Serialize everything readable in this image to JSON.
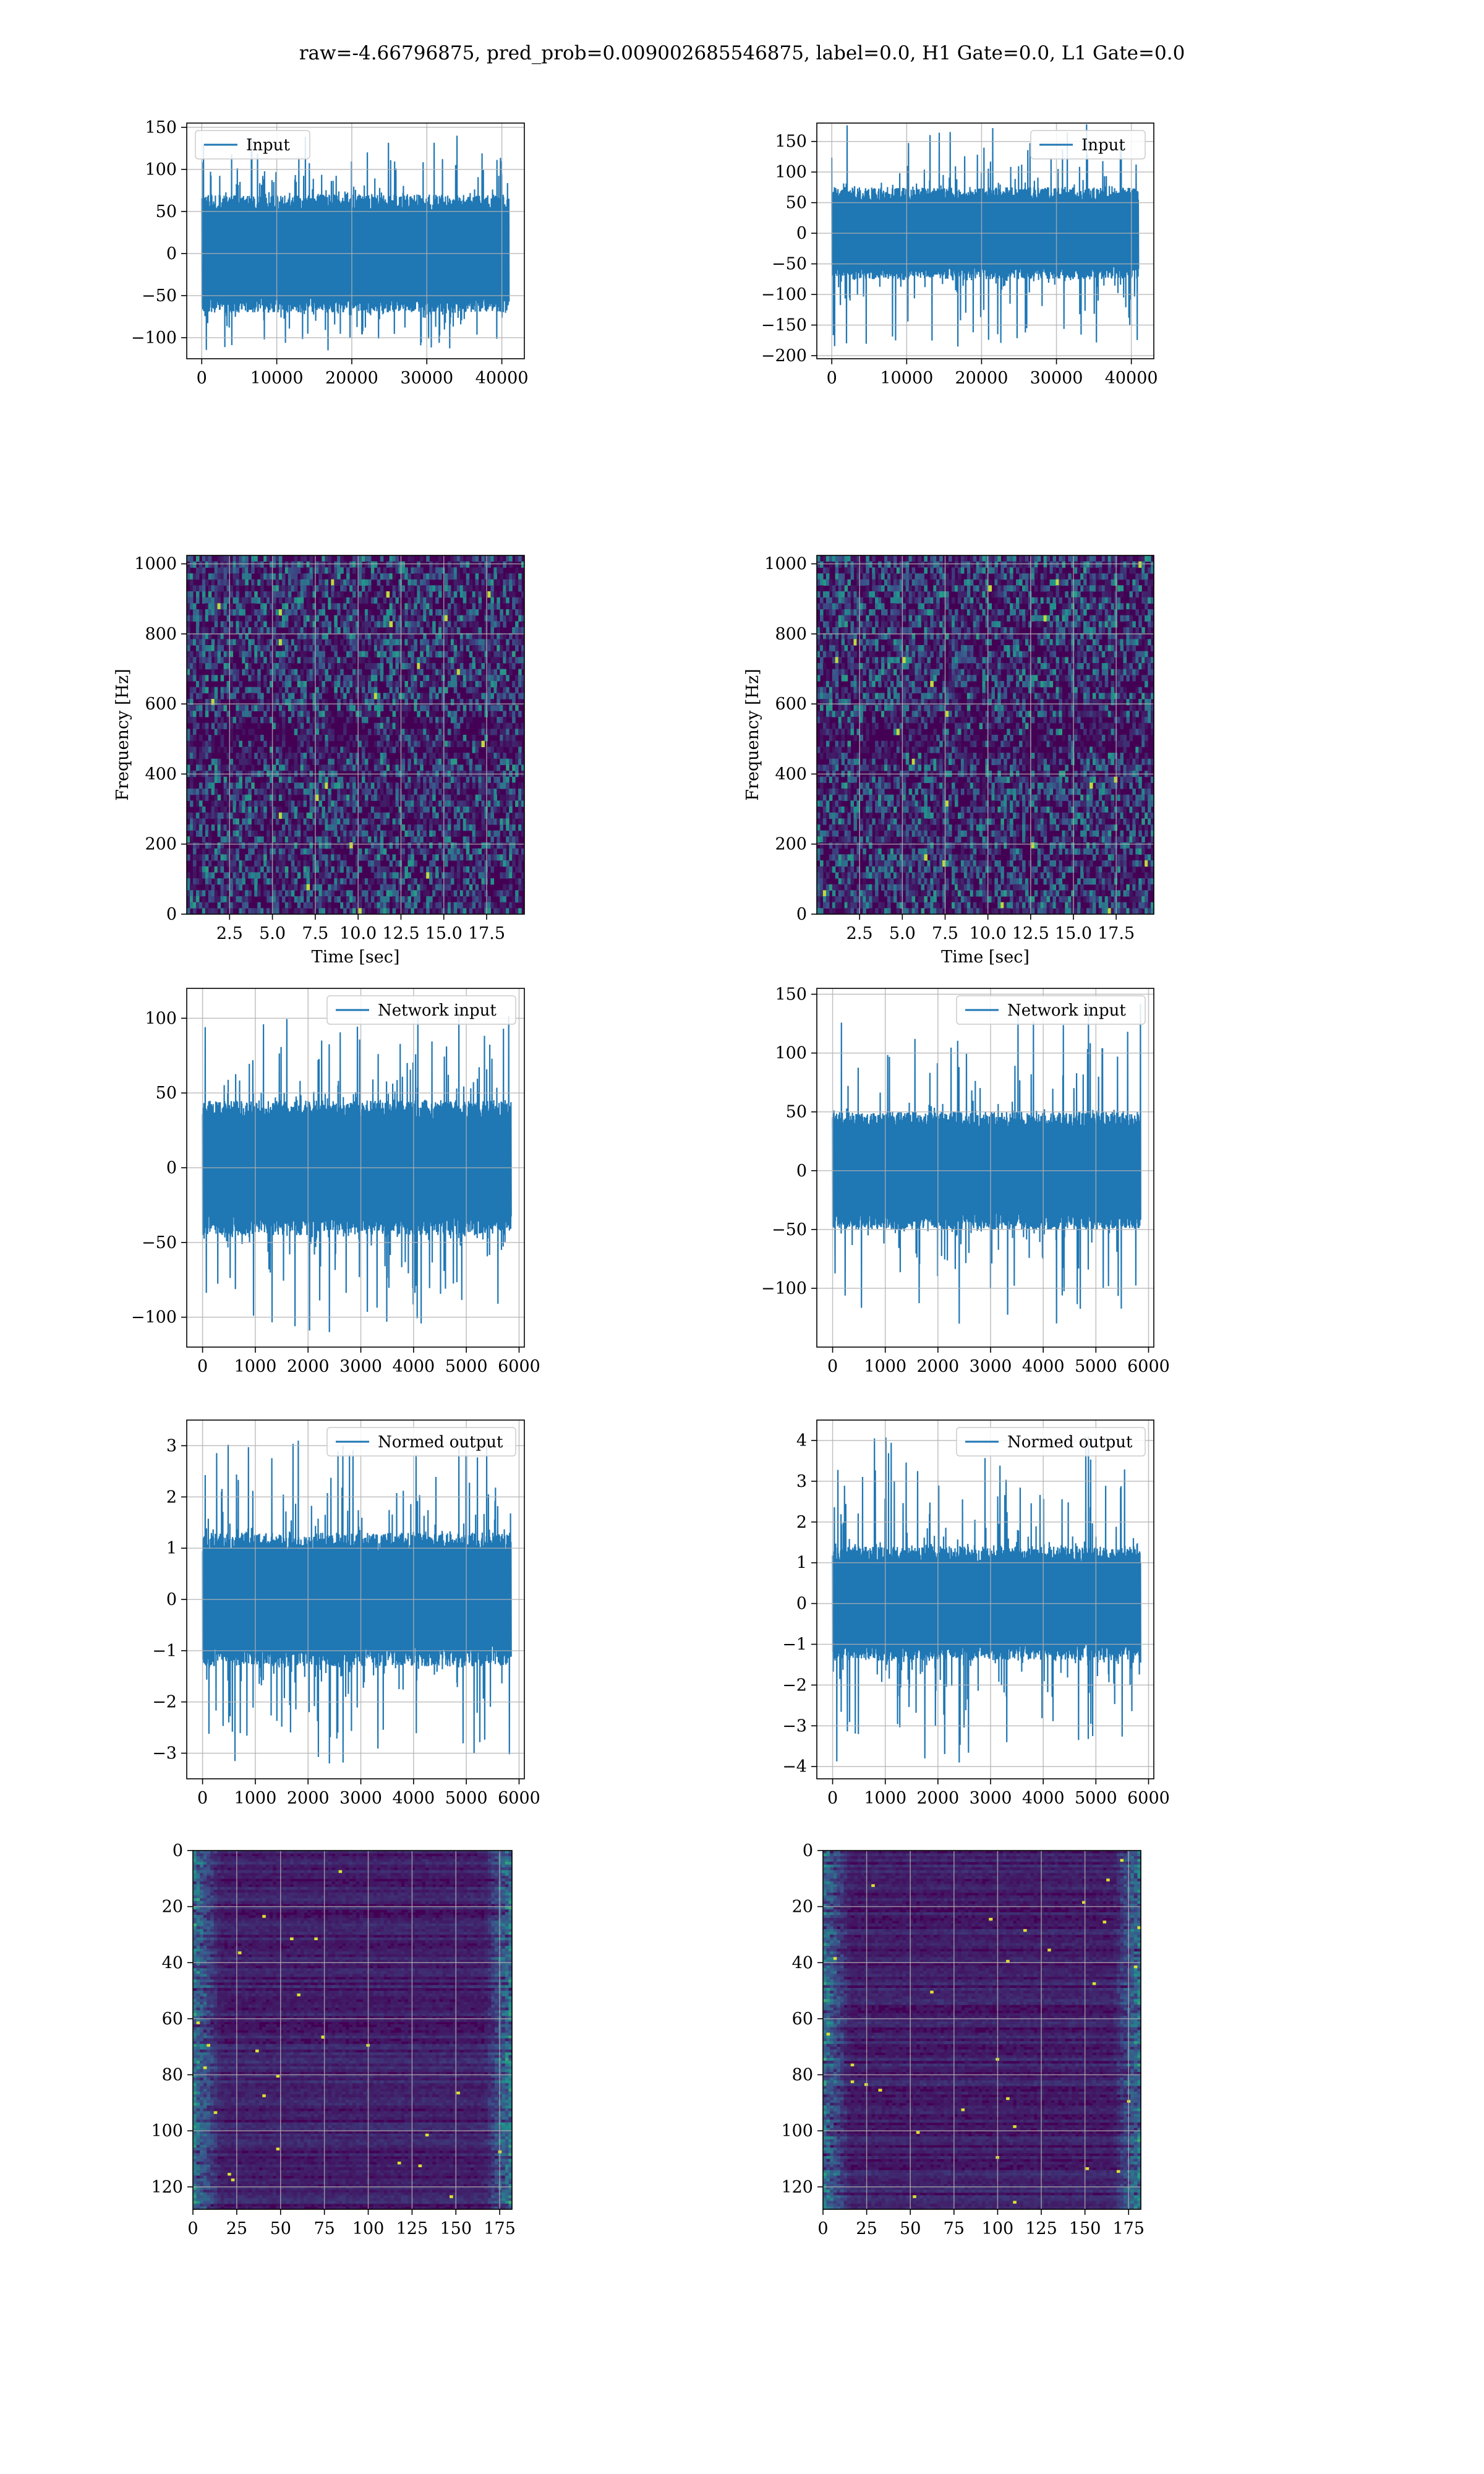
{
  "figure_title": "raw=-4.66796875, pred_prob=0.009002685546875, label=0.0, H1 Gate=0.0, L1 Gate=0.0",
  "colors": {
    "line": "#1f77b4",
    "grid": "#b0b0b0",
    "heat_low": "#440154",
    "heat_mid": "#21918c",
    "heat_high": "#fde725"
  },
  "chart_data": [
    {
      "id": "input-h1",
      "type": "line",
      "legend": "Input",
      "legend_position": "upper left",
      "xlim": [
        -2000,
        43000
      ],
      "ylim": [
        -125,
        155
      ],
      "xticks": [
        0,
        10000,
        20000,
        30000,
        40000
      ],
      "xtick_labels": [
        "0",
        "10000",
        "20000",
        "30000",
        "40000"
      ],
      "yticks": [
        -100,
        -50,
        0,
        50,
        100,
        150
      ],
      "ytick_labels": [
        "−100",
        "−50",
        "0",
        "50",
        "100",
        "150"
      ],
      "x_range": [
        0,
        40960
      ],
      "band": [
        -70,
        70
      ],
      "extreme_min": -115,
      "extreme_max": 140,
      "grid": true
    },
    {
      "id": "input-l1",
      "type": "line",
      "legend": "Input",
      "legend_position": "upper right",
      "xlim": [
        -2000,
        43000
      ],
      "ylim": [
        -205,
        180
      ],
      "xticks": [
        0,
        10000,
        20000,
        30000,
        40000
      ],
      "xtick_labels": [
        "0",
        "10000",
        "20000",
        "30000",
        "40000"
      ],
      "yticks": [
        -200,
        -150,
        -100,
        -50,
        0,
        50,
        100,
        150
      ],
      "ytick_labels": [
        "−200",
        "−150",
        "−100",
        "−50",
        "0",
        "50",
        "100",
        "150"
      ],
      "x_range": [
        0,
        40960
      ],
      "band": [
        -75,
        75
      ],
      "extreme_min": -185,
      "extreme_max": 178,
      "grid": true
    },
    {
      "id": "spec-h1",
      "type": "heatmap",
      "xlabel": "Time [sec]",
      "ylabel": "Frequency [Hz]",
      "xlim": [
        0,
        19.7
      ],
      "ylim": [
        0,
        1024
      ],
      "xticks": [
        2.5,
        5.0,
        7.5,
        10.0,
        12.5,
        15.0,
        17.5
      ],
      "xtick_labels": [
        "2.5",
        "5.0",
        "7.5",
        "10.0",
        "12.5",
        "15.0",
        "17.5"
      ],
      "yticks": [
        0,
        200,
        400,
        600,
        800,
        1000
      ],
      "ytick_labels": [
        "0",
        "200",
        "400",
        "600",
        "800",
        "1000"
      ],
      "grid": true
    },
    {
      "id": "spec-l1",
      "type": "heatmap",
      "xlabel": "Time [sec]",
      "ylabel": "Frequency [Hz]",
      "xlim": [
        0,
        19.7
      ],
      "ylim": [
        0,
        1024
      ],
      "xticks": [
        2.5,
        5.0,
        7.5,
        10.0,
        12.5,
        15.0,
        17.5
      ],
      "xtick_labels": [
        "2.5",
        "5.0",
        "7.5",
        "10.0",
        "12.5",
        "15.0",
        "17.5"
      ],
      "yticks": [
        0,
        200,
        400,
        600,
        800,
        1000
      ],
      "ytick_labels": [
        "0",
        "200",
        "400",
        "600",
        "800",
        "1000"
      ],
      "grid": true
    },
    {
      "id": "net-h1",
      "type": "line",
      "legend": "Network input",
      "legend_position": "upper right",
      "xlim": [
        -300,
        6100
      ],
      "ylim": [
        -120,
        120
      ],
      "xticks": [
        0,
        1000,
        2000,
        3000,
        4000,
        5000,
        6000
      ],
      "xtick_labels": [
        "0",
        "1000",
        "2000",
        "3000",
        "4000",
        "5000",
        "6000"
      ],
      "yticks": [
        -100,
        -50,
        0,
        50,
        100
      ],
      "ytick_labels": [
        "−100",
        "−50",
        "0",
        "50",
        "100"
      ],
      "x_range": [
        0,
        5850
      ],
      "band": [
        -45,
        45
      ],
      "extreme_min": -110,
      "extreme_max": 105,
      "grid": true
    },
    {
      "id": "net-l1",
      "type": "line",
      "legend": "Network input",
      "legend_position": "upper right",
      "xlim": [
        -300,
        6100
      ],
      "ylim": [
        -150,
        155
      ],
      "xticks": [
        0,
        1000,
        2000,
        3000,
        4000,
        5000,
        6000
      ],
      "xtick_labels": [
        "0",
        "1000",
        "2000",
        "3000",
        "4000",
        "5000",
        "6000"
      ],
      "yticks": [
        -100,
        -50,
        0,
        50,
        100,
        150
      ],
      "ytick_labels": [
        "−100",
        "−50",
        "0",
        "50",
        "100",
        "150"
      ],
      "x_range": [
        0,
        5850
      ],
      "band": [
        -50,
        50
      ],
      "extreme_min": -130,
      "extreme_max": 142,
      "grid": true
    },
    {
      "id": "norm-h1",
      "type": "line",
      "legend": "Normed output",
      "legend_position": "upper right",
      "xlim": [
        -300,
        6100
      ],
      "ylim": [
        -3.5,
        3.5
      ],
      "xticks": [
        0,
        1000,
        2000,
        3000,
        4000,
        5000,
        6000
      ],
      "xtick_labels": [
        "0",
        "1000",
        "2000",
        "3000",
        "4000",
        "5000",
        "6000"
      ],
      "yticks": [
        -3,
        -2,
        -1,
        0,
        1,
        2,
        3
      ],
      "ytick_labels": [
        "−3",
        "−2",
        "−1",
        "0",
        "1",
        "2",
        "3"
      ],
      "x_range": [
        0,
        5850
      ],
      "band": [
        -1.3,
        1.3
      ],
      "extreme_min": -3.2,
      "extreme_max": 3.1,
      "grid": true
    },
    {
      "id": "norm-l1",
      "type": "line",
      "legend": "Normed output",
      "legend_position": "upper right",
      "xlim": [
        -300,
        6100
      ],
      "ylim": [
        -4.3,
        4.5
      ],
      "xticks": [
        0,
        1000,
        2000,
        3000,
        4000,
        5000,
        6000
      ],
      "xtick_labels": [
        "0",
        "1000",
        "2000",
        "3000",
        "4000",
        "5000",
        "6000"
      ],
      "yticks": [
        -4,
        -3,
        -2,
        -1,
        0,
        1,
        2,
        3,
        4
      ],
      "ytick_labels": [
        "−4",
        "−3",
        "−2",
        "−1",
        "0",
        "1",
        "2",
        "3",
        "4"
      ],
      "x_range": [
        0,
        5850
      ],
      "band": [
        -1.4,
        1.4
      ],
      "extreme_min": -3.9,
      "extreme_max": 4.1,
      "grid": true
    },
    {
      "id": "feat-h1",
      "type": "heatmap",
      "xlim": [
        0,
        182
      ],
      "ylim": [
        128,
        0
      ],
      "xticks": [
        0,
        25,
        50,
        75,
        100,
        125,
        150,
        175
      ],
      "xtick_labels": [
        "0",
        "25",
        "50",
        "75",
        "100",
        "125",
        "150",
        "175"
      ],
      "yticks": [
        0,
        20,
        40,
        60,
        80,
        100,
        120
      ],
      "ytick_labels": [
        "0",
        "20",
        "40",
        "60",
        "80",
        "100",
        "120"
      ],
      "grid": true
    },
    {
      "id": "feat-l1",
      "type": "heatmap",
      "xlim": [
        0,
        182
      ],
      "ylim": [
        128,
        0
      ],
      "xticks": [
        0,
        25,
        50,
        75,
        100,
        125,
        150,
        175
      ],
      "xtick_labels": [
        "0",
        "25",
        "50",
        "75",
        "100",
        "125",
        "150",
        "175"
      ],
      "yticks": [
        0,
        20,
        40,
        60,
        80,
        100,
        120
      ],
      "ytick_labels": [
        "0",
        "20",
        "40",
        "60",
        "80",
        "100",
        "120"
      ],
      "grid": true
    }
  ]
}
